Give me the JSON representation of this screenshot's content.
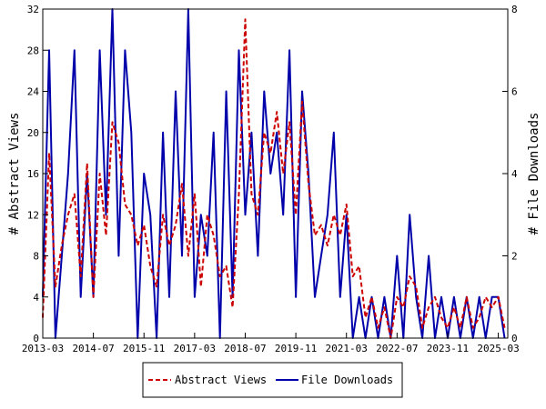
{
  "chart_data": {
    "type": "line",
    "x_ticks": [
      "2013-03",
      "2014-07",
      "2015-11",
      "2017-03",
      "2018-07",
      "2019-11",
      "2021-03",
      "2022-07",
      "2023-11",
      "2025-03"
    ],
    "x_range": [
      "2013-03",
      "2025-06"
    ],
    "left_axis": {
      "label": "# Abstract Views",
      "range": [
        0,
        32
      ],
      "ticks": [
        0,
        4,
        8,
        12,
        16,
        20,
        24,
        28,
        32
      ]
    },
    "right_axis": {
      "label": "# File Downloads",
      "range": [
        0,
        8
      ],
      "ticks": [
        0,
        2,
        4,
        6,
        8
      ]
    },
    "legend_position": "bottom",
    "grid": false,
    "series": [
      {
        "name": "Abstract Views",
        "axis": "left",
        "style": "dashed",
        "color": "#cc0000",
        "x": [
          "2013-03",
          "2013-05",
          "2013-07",
          "2013-09",
          "2013-11",
          "2014-01",
          "2014-03",
          "2014-05",
          "2014-07",
          "2014-09",
          "2014-11",
          "2015-01",
          "2015-03",
          "2015-05",
          "2015-07",
          "2015-09",
          "2015-11",
          "2016-01",
          "2016-03",
          "2016-05",
          "2016-07",
          "2016-09",
          "2016-11",
          "2017-01",
          "2017-03",
          "2017-05",
          "2017-07",
          "2017-09",
          "2017-11",
          "2018-01",
          "2018-03",
          "2018-05",
          "2018-07",
          "2018-09",
          "2018-11",
          "2019-01",
          "2019-03",
          "2019-05",
          "2019-07",
          "2019-09",
          "2019-11",
          "2020-01",
          "2020-03",
          "2020-05",
          "2020-07",
          "2020-09",
          "2020-11",
          "2021-01",
          "2021-03",
          "2021-05",
          "2021-07",
          "2021-09",
          "2021-11",
          "2022-01",
          "2022-03",
          "2022-05",
          "2022-07",
          "2022-09",
          "2022-11",
          "2023-01",
          "2023-03",
          "2023-05",
          "2023-07",
          "2023-09",
          "2023-11",
          "2024-01",
          "2024-03",
          "2024-05",
          "2024-07",
          "2024-09",
          "2024-11",
          "2025-01",
          "2025-03",
          "2025-05"
        ],
        "values": [
          2,
          18,
          5,
          9,
          12,
          14,
          6,
          17,
          4,
          16,
          10,
          21,
          19,
          13,
          12,
          9,
          11,
          7,
          5,
          12,
          9,
          11,
          15,
          8,
          14,
          5,
          12,
          10,
          6,
          7,
          3,
          14,
          31,
          14,
          12,
          20,
          18,
          22,
          16,
          21,
          12,
          23,
          15,
          10,
          11,
          9,
          12,
          10,
          13,
          6,
          7,
          2,
          4,
          1,
          3,
          0,
          4,
          3,
          6,
          5,
          1,
          3,
          4,
          2,
          1,
          3,
          1,
          4,
          1,
          2,
          4,
          3,
          4,
          1
        ]
      },
      {
        "name": "File Downloads",
        "axis": "right",
        "style": "solid",
        "color": "#0000aa",
        "x": [
          "2013-03",
          "2013-05",
          "2013-07",
          "2013-09",
          "2013-11",
          "2014-01",
          "2014-03",
          "2014-05",
          "2014-07",
          "2014-09",
          "2014-11",
          "2015-01",
          "2015-03",
          "2015-05",
          "2015-07",
          "2015-09",
          "2015-11",
          "2016-01",
          "2016-03",
          "2016-05",
          "2016-07",
          "2016-09",
          "2016-11",
          "2017-01",
          "2017-03",
          "2017-05",
          "2017-07",
          "2017-09",
          "2017-11",
          "2018-01",
          "2018-03",
          "2018-05",
          "2018-07",
          "2018-09",
          "2018-11",
          "2019-01",
          "2019-03",
          "2019-05",
          "2019-07",
          "2019-09",
          "2019-11",
          "2020-01",
          "2020-03",
          "2020-05",
          "2020-07",
          "2020-09",
          "2020-11",
          "2021-01",
          "2021-03",
          "2021-05",
          "2021-07",
          "2021-09",
          "2021-11",
          "2022-01",
          "2022-03",
          "2022-05",
          "2022-07",
          "2022-09",
          "2022-11",
          "2023-01",
          "2023-03",
          "2023-05",
          "2023-07",
          "2023-09",
          "2023-11",
          "2024-01",
          "2024-03",
          "2024-05",
          "2024-07",
          "2024-09",
          "2024-11",
          "2025-01",
          "2025-03",
          "2025-05"
        ],
        "values": [
          1,
          7,
          0,
          2,
          4,
          7,
          1,
          4,
          1,
          7,
          3,
          8,
          2,
          7,
          5,
          0,
          4,
          3,
          0,
          5,
          1,
          6,
          2,
          8,
          1,
          3,
          2,
          5,
          0,
          6,
          1,
          7,
          3,
          5,
          2,
          6,
          4,
          5,
          3,
          7,
          1,
          6,
          4,
          1,
          2,
          3,
          5,
          1,
          3,
          0,
          1,
          0,
          1,
          0,
          1,
          0,
          2,
          0,
          3,
          1,
          0,
          2,
          0,
          1,
          0,
          1,
          0,
          1,
          0,
          1,
          0,
          1,
          1,
          0
        ]
      }
    ]
  }
}
